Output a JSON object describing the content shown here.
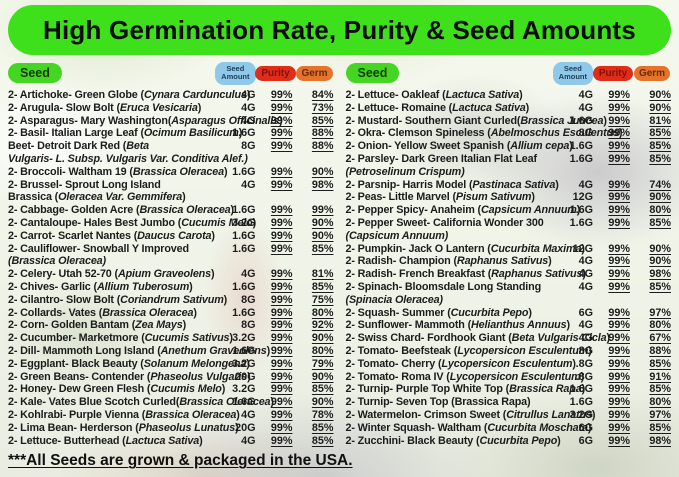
{
  "title": "High Germination Rate, Purity & Seed Amounts",
  "footer": "***All Seeds are grown & packaged in the USA.",
  "header": {
    "seed": "Seed",
    "amount_line1": "Seed",
    "amount_line2": "Amount",
    "purity": "Purity",
    "germ": "Germ"
  },
  "colors": {
    "banner_green": "#3ee01b",
    "seed_chip_green": "#44d622",
    "amount_chip_blue": "#8fc8e9",
    "purity_chip_red": "#df2d1a",
    "germ_chip_orange": "#e4732c",
    "text": "#1c1c1c"
  },
  "table": {
    "left": [
      {
        "lines": [
          [
            [
              "2- Artichoke- Green Globe (",
              0
            ],
            [
              "Cynara Cardunculus",
              1
            ],
            [
              ")",
              0
            ]
          ]
        ],
        "amount": "4G",
        "purity": "99%",
        "germ": "84%"
      },
      {
        "lines": [
          [
            [
              "2- Arugula- Slow Bolt (",
              0
            ],
            [
              "Eruca Vesicaria",
              1
            ],
            [
              ")",
              0
            ]
          ]
        ],
        "amount": "4G",
        "purity": "99%",
        "germ": "73%"
      },
      {
        "lines": [
          [
            [
              "2- Asparagus- Mary Washington(",
              0
            ],
            [
              "Asparagus Officinalis",
              1
            ],
            [
              ")",
              0
            ]
          ]
        ],
        "amount": "4G",
        "purity": "99%",
        "germ": "85%"
      },
      {
        "lines": [
          [
            [
              "2- Basil- Italian Large Leaf (",
              0
            ],
            [
              "Ocimum Basilicum",
              1
            ],
            [
              ")",
              0
            ]
          ]
        ],
        "amount": "1.6G",
        "purity": "99%",
        "germ": "88%"
      },
      {
        "lines": [
          [
            [
              "Beet- Detroit Dark Red (",
              0
            ],
            [
              "Beta",
              1
            ]
          ],
          [
            [
              "Vulgaris- L. Subsp. Vulgaris Var. Conditiva Alef.)",
              1
            ]
          ]
        ],
        "amount": "8G",
        "purity": "99%",
        "germ": "88%"
      },
      {
        "lines": [
          [
            [
              "2- Broccoli- Waltham 19 (",
              0
            ],
            [
              "Brassica Oleracea",
              1
            ],
            [
              ")",
              0
            ]
          ]
        ],
        "amount": "1.6G",
        "purity": "99%",
        "germ": "90%"
      },
      {
        "lines": [
          [
            [
              "2- Brussel- Sprout Long Island",
              0
            ]
          ],
          [
            [
              "Brassica (",
              0
            ],
            [
              "Oleracea Var. Gemmifera",
              1
            ],
            [
              ")",
              0
            ]
          ]
        ],
        "amount": "4G",
        "purity": "99%",
        "germ": "98%"
      },
      {
        "lines": [
          [
            [
              "2- Cabbage- Golden Acre (",
              0
            ],
            [
              "Brassica Oleracea",
              1
            ],
            [
              ")",
              0
            ]
          ]
        ],
        "amount": "1.6G",
        "purity": "99%",
        "germ": "99%"
      },
      {
        "lines": [
          [
            [
              "2- Cantaloupe- Hales Best Jumbo (",
              0
            ],
            [
              "Cucumis Melo",
              1
            ],
            [
              ")",
              0
            ]
          ]
        ],
        "amount": "3.2G",
        "purity": "99%",
        "germ": "90%"
      },
      {
        "lines": [
          [
            [
              "2- Carrot- Scarlet Nantes (",
              0
            ],
            [
              "Daucus Carota",
              1
            ],
            [
              ")",
              0
            ]
          ]
        ],
        "amount": "1.6G",
        "purity": "99%",
        "germ": "90%"
      },
      {
        "lines": [
          [
            [
              "2- Cauliflower- Snowball Y Improved",
              0
            ]
          ],
          [
            [
              "(Brassica Oleracea)",
              1
            ]
          ]
        ],
        "amount": "1.6G",
        "purity": "99%",
        "germ": "85%"
      },
      {
        "lines": [
          [
            [
              "2- Celery- Utah 52-70 (",
              0
            ],
            [
              "Apium Graveolens",
              1
            ],
            [
              ")",
              0
            ]
          ]
        ],
        "amount": "4G",
        "purity": "99%",
        "germ": "81%"
      },
      {
        "lines": [
          [
            [
              "2- Chives- Garlic (",
              0
            ],
            [
              "Allium Tuberosum",
              1
            ],
            [
              ")",
              0
            ]
          ]
        ],
        "amount": "1.6G",
        "purity": "99%",
        "germ": "85%"
      },
      {
        "lines": [
          [
            [
              "2- Cilantro- Slow Bolt (",
              0
            ],
            [
              "Coriandrum Sativum",
              1
            ],
            [
              ")",
              0
            ]
          ]
        ],
        "amount": "8G",
        "purity": "99%",
        "germ": "75%"
      },
      {
        "lines": [
          [
            [
              "2- Collards- Vates (",
              0
            ],
            [
              "Brassica Oleracea",
              1
            ],
            [
              ")",
              0
            ]
          ]
        ],
        "amount": "1.6G",
        "purity": "99%",
        "germ": "80%"
      },
      {
        "lines": [
          [
            [
              "2- Corn- Golden Bantam (",
              0
            ],
            [
              "Zea Mays",
              1
            ],
            [
              ")",
              0
            ]
          ]
        ],
        "amount": "8G",
        "purity": "99%",
        "germ": "92%"
      },
      {
        "lines": [
          [
            [
              "2- Cucumber- Marketmore (",
              0
            ],
            [
              "Cucumis Sativus",
              1
            ],
            [
              ")",
              0
            ]
          ]
        ],
        "amount": "3.2G",
        "purity": "99%",
        "germ": "90%"
      },
      {
        "lines": [
          [
            [
              "2- Dill- Mammoth Long Island (",
              0
            ],
            [
              "Anethum Graveolens",
              1
            ],
            [
              ")",
              0
            ]
          ]
        ],
        "amount": "1.6G",
        "purity": "99%",
        "germ": "80%"
      },
      {
        "lines": [
          [
            [
              "2- Eggplant- Black Beauty (",
              0
            ],
            [
              "Solanum Melongena",
              1
            ],
            [
              ")",
              0
            ]
          ]
        ],
        "amount": "3.2G",
        "purity": "99%",
        "germ": "79%"
      },
      {
        "lines": [
          [
            [
              "2- Green Beans- Contender (",
              0
            ],
            [
              "Phaseolus Vulgaris",
              1
            ],
            [
              ")",
              0
            ]
          ]
        ],
        "amount": "20G",
        "purity": "99%",
        "germ": "90%"
      },
      {
        "lines": [
          [
            [
              "2- Honey- Dew Green Flesh (",
              0
            ],
            [
              "Cucumis Melo",
              1
            ],
            [
              ")",
              0
            ]
          ]
        ],
        "amount": "3.2G",
        "purity": "99%",
        "germ": "85%"
      },
      {
        "lines": [
          [
            [
              "2- Kale- Vates Blue Scotch Curled(",
              0
            ],
            [
              "Brassica Oleracea",
              1
            ],
            [
              ")",
              0
            ]
          ]
        ],
        "amount": "1.6G",
        "purity": "99%",
        "germ": "90%"
      },
      {
        "lines": [
          [
            [
              "2- Kohlrabi- Purple Vienna (",
              0
            ],
            [
              "Brassica Oleracea",
              1
            ],
            [
              ")",
              0
            ]
          ]
        ],
        "amount": "4G",
        "purity": "99%",
        "germ": "78%"
      },
      {
        "lines": [
          [
            [
              "2- Lima Bean- Herderson (",
              0
            ],
            [
              "Phaseolus Lunatus",
              1
            ],
            [
              ")",
              0
            ]
          ]
        ],
        "amount": "20G",
        "purity": "99%",
        "germ": "85%"
      },
      {
        "lines": [
          [
            [
              "2- Lettuce- Butterhead (",
              0
            ],
            [
              "Lactuca Sativa",
              1
            ],
            [
              ")",
              0
            ]
          ]
        ],
        "amount": "4G",
        "purity": "99%",
        "germ": "85%"
      }
    ],
    "right": [
      {
        "lines": [
          [
            [
              "2- Lettuce- Oakleaf (",
              0
            ],
            [
              "Lactuca Sativa",
              1
            ],
            [
              ")",
              0
            ]
          ]
        ],
        "amount": "4G",
        "purity": "99%",
        "germ": "90%"
      },
      {
        "lines": [
          [
            [
              "2- Lettuce- Romaine (",
              0
            ],
            [
              "Lactuca Sativa",
              1
            ],
            [
              ")",
              0
            ]
          ]
        ],
        "amount": "4G",
        "purity": "99%",
        "germ": "90%"
      },
      {
        "lines": [
          [
            [
              "2- Mustard- Southern Giant Curled(",
              0
            ],
            [
              "Brassica Juncea",
              1
            ],
            [
              ")",
              0
            ]
          ]
        ],
        "amount": "1.6G",
        "purity": "99%",
        "germ": "81%"
      },
      {
        "lines": [
          [
            [
              "2- Okra- Clemson Spineless (",
              0
            ],
            [
              "Abelmoschus Esculentus",
              1
            ],
            [
              ")",
              0
            ]
          ]
        ],
        "amount": "8G",
        "purity": "99%",
        "germ": "85%"
      },
      {
        "lines": [
          [
            [
              "2- Onion- Yellow Sweet Spanish (",
              0
            ],
            [
              "Allium cepa",
              1
            ],
            [
              ")",
              0
            ]
          ]
        ],
        "amount": "1.6G",
        "purity": "99%",
        "germ": "85%"
      },
      {
        "lines": [
          [
            [
              "2- Parsley- Dark Green Italian Flat Leaf",
              0
            ]
          ],
          [
            [
              "(Petroselinum Crispum)",
              1
            ]
          ]
        ],
        "amount": "1.6G",
        "purity": "99%",
        "germ": "85%"
      },
      {
        "lines": [
          [
            [
              "2- Parsnip- Harris Model (",
              0
            ],
            [
              "Pastinaca Sativa",
              1
            ],
            [
              ")",
              0
            ]
          ]
        ],
        "amount": "4G",
        "purity": "99%",
        "germ": "74%"
      },
      {
        "lines": [
          [
            [
              "2- Peas- Little Marvel (",
              0
            ],
            [
              "Pisum Sativum",
              1
            ],
            [
              ")",
              0
            ]
          ]
        ],
        "amount": "12G",
        "purity": "99%",
        "germ": "90%"
      },
      {
        "lines": [
          [
            [
              "2- Pepper Spicy- Anaheim (",
              0
            ],
            [
              "Capsicum Annuum",
              1
            ],
            [
              ")",
              0
            ]
          ]
        ],
        "amount": "1.6G",
        "purity": "99%",
        "germ": "80%"
      },
      {
        "lines": [
          [
            [
              "2- Pepper Sweet- California Wonder 300",
              0
            ]
          ],
          [
            [
              "(Capsicum Annuum)",
              1
            ]
          ]
        ],
        "amount": "1.6G",
        "purity": "99%",
        "germ": "85%"
      },
      {
        "lines": [
          [
            [
              "2- Pumpkin- Jack O Lantern (",
              0
            ],
            [
              "Cucurbita Maxima",
              1
            ],
            [
              ")",
              0
            ]
          ]
        ],
        "amount": "12G",
        "purity": "99%",
        "germ": "90%"
      },
      {
        "lines": [
          [
            [
              "2- Radish- Champion (",
              0
            ],
            [
              "Raphanus Sativus",
              1
            ],
            [
              ")",
              0
            ]
          ]
        ],
        "amount": "4G",
        "purity": "99%",
        "germ": "90%"
      },
      {
        "lines": [
          [
            [
              "2- Radish- French Breakfast (",
              0
            ],
            [
              "Raphanus Sativus",
              1
            ],
            [
              ")",
              0
            ]
          ]
        ],
        "amount": "4G",
        "purity": "99%",
        "germ": "98%"
      },
      {
        "lines": [
          [
            [
              "2- Spinach- Bloomsdale Long Standing",
              0
            ]
          ],
          [
            [
              "(Spinacia Oleracea)",
              1
            ]
          ]
        ],
        "amount": "4G",
        "purity": "99%",
        "germ": "85%"
      },
      {
        "lines": [
          [
            [
              "2- Squash- Summer (",
              0
            ],
            [
              "Cucurbita Pepo",
              1
            ],
            [
              ")",
              0
            ]
          ]
        ],
        "amount": "6G",
        "purity": "99%",
        "germ": "97%"
      },
      {
        "lines": [
          [
            [
              "2- Sunflower- Mammoth (",
              0
            ],
            [
              "Helianthus Annuus",
              1
            ],
            [
              ")",
              0
            ]
          ]
        ],
        "amount": "4G",
        "purity": "99%",
        "germ": "80%"
      },
      {
        "lines": [
          [
            [
              "2- Swiss Chard- Fordhook Giant (",
              0
            ],
            [
              "Beta Vulgaris Cicla",
              1
            ],
            [
              ")",
              0
            ]
          ]
        ],
        "amount": "4G",
        "purity": "99%",
        "germ": "67%"
      },
      {
        "lines": [
          [
            [
              "2- Tomato- Beefsteak (",
              0
            ],
            [
              "Lycopersicon Esculentum",
              1
            ],
            [
              ")",
              0
            ]
          ]
        ],
        "amount": ".8G",
        "purity": "99%",
        "germ": "88%"
      },
      {
        "lines": [
          [
            [
              "2- Tomato- Cherry (",
              0
            ],
            [
              "Lycopersicon Esculentum",
              1
            ],
            [
              ")",
              0
            ]
          ]
        ],
        "amount": ".8G",
        "purity": "99%",
        "germ": "85%"
      },
      {
        "lines": [
          [
            [
              "2- Tomato- Roma IV (",
              0
            ],
            [
              "Lycopersicon Esculentum",
              1
            ],
            [
              ")",
              0
            ]
          ]
        ],
        "amount": ".8G",
        "purity": "99%",
        "germ": "91%"
      },
      {
        "lines": [
          [
            [
              "2- Turnip- Purple Top White Top (",
              0
            ],
            [
              "Brassica Rapa",
              1
            ],
            [
              ")",
              0
            ]
          ]
        ],
        "amount": "1.6G",
        "purity": "99%",
        "germ": "85%"
      },
      {
        "lines": [
          [
            [
              "2- Turnip- Seven Top (Brassica Rapa)",
              0
            ]
          ]
        ],
        "amount": "1.6G",
        "purity": "99%",
        "germ": "80%"
      },
      {
        "lines": [
          [
            [
              "2- Watermelon- Crimson Sweet (",
              0
            ],
            [
              "Citrullus Lanatus",
              1
            ],
            [
              ")",
              0
            ]
          ]
        ],
        "amount": "3.2G",
        "purity": "99%",
        "germ": "97%"
      },
      {
        "lines": [
          [
            [
              "2- Winter Squash- Waltham (",
              0
            ],
            [
              "Cucurbita Moschata",
              1
            ],
            [
              ")",
              0
            ]
          ]
        ],
        "amount": "6G",
        "purity": "99%",
        "germ": "85%"
      },
      {
        "lines": [
          [
            [
              "2- Zucchini- Black Beauty (",
              0
            ],
            [
              "Cucurbita Pepo",
              1
            ],
            [
              ")",
              0
            ]
          ]
        ],
        "amount": "6G",
        "purity": "99%",
        "germ": "98%"
      }
    ]
  }
}
